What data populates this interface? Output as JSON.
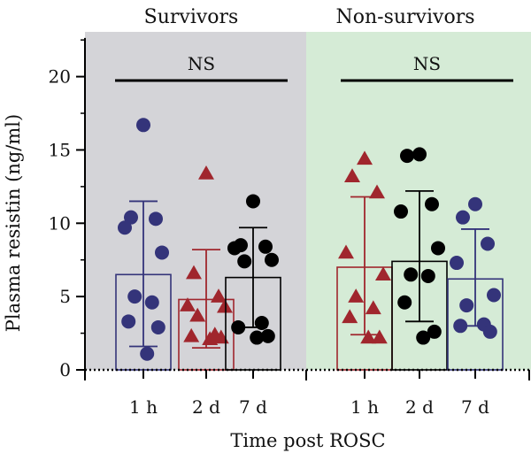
{
  "chart_data": {
    "type": "bar",
    "xlabel": "Time post ROSC",
    "ylabel": "Plasma resistin (ng/ml)",
    "ylim": [
      0,
      23
    ],
    "yticks": [
      0,
      5,
      10,
      15,
      20
    ],
    "grid": false,
    "groups": [
      {
        "title": "Survivors",
        "background": "#d4d4d8",
        "significance": "NS",
        "bars": [
          {
            "category": "1 h",
            "mean": 6.5,
            "err_low": 1.6,
            "err_high": 11.5,
            "color": "#34347a",
            "marker": "circle",
            "points": [
              16.7,
              10.4,
              10.3,
              9.7,
              8.0,
              5.0,
              4.6,
              3.3,
              2.9,
              1.1
            ]
          },
          {
            "category": "2 d",
            "mean": 4.8,
            "err_low": 1.5,
            "err_high": 8.2,
            "color": "#a0262d",
            "marker": "triangle",
            "points": [
              13.4,
              6.6,
              5.0,
              4.4,
              4.3,
              3.7,
              2.4,
              2.3,
              2.2,
              2.1
            ]
          },
          {
            "category": "7 d",
            "mean": 6.3,
            "err_low": 2.9,
            "err_high": 9.7,
            "color": "#000000",
            "marker": "circle",
            "points": [
              11.5,
              8.5,
              8.4,
              8.3,
              7.5,
              7.4,
              3.2,
              2.9,
              2.3,
              2.2
            ]
          }
        ]
      },
      {
        "title": "Non-survivors",
        "background": "#d5ebd6",
        "significance": "NS",
        "bars": [
          {
            "category": "1 h",
            "mean": 7.0,
            "err_low": 2.4,
            "err_high": 11.8,
            "color": "#a0262d",
            "marker": "triangle",
            "points": [
              14.4,
              13.2,
              12.1,
              8.0,
              6.5,
              5.0,
              4.2,
              3.6,
              2.2,
              2.2
            ]
          },
          {
            "category": "2 d",
            "mean": 7.4,
            "err_low": 3.3,
            "err_high": 12.2,
            "color": "#000000",
            "marker": "circle",
            "points": [
              14.7,
              14.6,
              11.3,
              10.8,
              8.3,
              6.5,
              6.4,
              4.6,
              2.6,
              2.2
            ]
          },
          {
            "category": "7 d",
            "mean": 6.2,
            "err_low": 3.0,
            "err_high": 9.6,
            "color": "#34347a",
            "marker": "circle",
            "points": [
              11.3,
              10.4,
              8.6,
              7.3,
              5.1,
              4.4,
              3.1,
              3.0,
              2.6
            ]
          }
        ]
      }
    ]
  }
}
